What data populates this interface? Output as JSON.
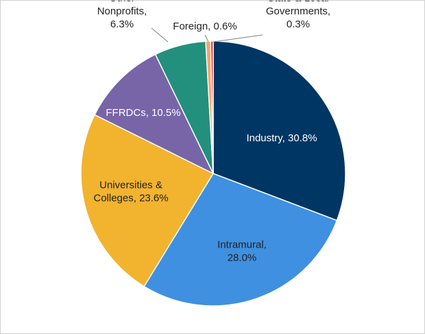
{
  "chart_data": {
    "type": "pie",
    "title": "",
    "slices": [
      {
        "label_lines": [
          "Industry, 30.8%"
        ],
        "value": 30.8,
        "color": "#003663",
        "label_color": "#ffffff"
      },
      {
        "label_lines": [
          "Intramural,",
          "28.0%"
        ],
        "value": 28.0,
        "color": "#3f90e0",
        "label_color": "#222222"
      },
      {
        "label_lines": [
          "Universities &",
          "Colleges, 23.6%"
        ],
        "value": 23.6,
        "color": "#f2b32f",
        "label_color": "#222222"
      },
      {
        "label_lines": [
          "FFRDCs, 10.5%"
        ],
        "value": 10.5,
        "color": "#7765a8",
        "label_color": "#ffffff"
      },
      {
        "label_lines": [
          "Other",
          "Nonprofits,",
          "6.3%"
        ],
        "value": 6.3,
        "color": "#22907c",
        "label_color": "#222222"
      },
      {
        "label_lines": [
          "Foreign, 0.6%"
        ],
        "value": 0.6,
        "color": "#ffa06a",
        "label_color": "#222222"
      },
      {
        "label_lines": [
          "State & Local",
          "Governments,",
          "0.3%"
        ],
        "value": 0.3,
        "color": "#d0312d",
        "label_color": "#222222"
      }
    ],
    "legend": "none"
  }
}
